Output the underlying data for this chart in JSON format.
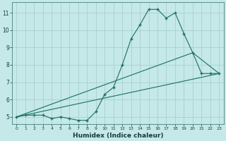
{
  "xlabel": "Humidex (Indice chaleur)",
  "bg_color": "#c5e8e8",
  "grid_color": "#aad0d0",
  "line_color": "#1a7060",
  "xlim": [
    -0.5,
    23.5
  ],
  "ylim": [
    4.6,
    11.6
  ],
  "xticks": [
    0,
    1,
    2,
    3,
    4,
    5,
    6,
    7,
    8,
    9,
    10,
    11,
    12,
    13,
    14,
    15,
    16,
    17,
    18,
    19,
    20,
    21,
    22,
    23
  ],
  "yticks": [
    5,
    6,
    7,
    8,
    9,
    10,
    11
  ],
  "main_x": [
    0,
    1,
    2,
    3,
    4,
    5,
    6,
    7,
    8,
    9,
    10,
    11,
    12,
    13,
    14,
    15,
    16,
    17,
    18,
    19,
    20,
    21,
    22,
    23
  ],
  "main_y": [
    5.0,
    5.1,
    5.1,
    5.1,
    4.9,
    5.0,
    4.9,
    4.8,
    4.8,
    5.3,
    6.3,
    6.7,
    8.0,
    9.5,
    10.3,
    11.2,
    11.2,
    10.7,
    11.0,
    9.8,
    8.7,
    7.5,
    7.5,
    7.5
  ],
  "trend1_x": [
    0,
    23
  ],
  "trend1_y": [
    5.0,
    7.5
  ],
  "trend2_x": [
    0,
    20,
    23
  ],
  "trend2_y": [
    5.0,
    8.7,
    7.5
  ]
}
